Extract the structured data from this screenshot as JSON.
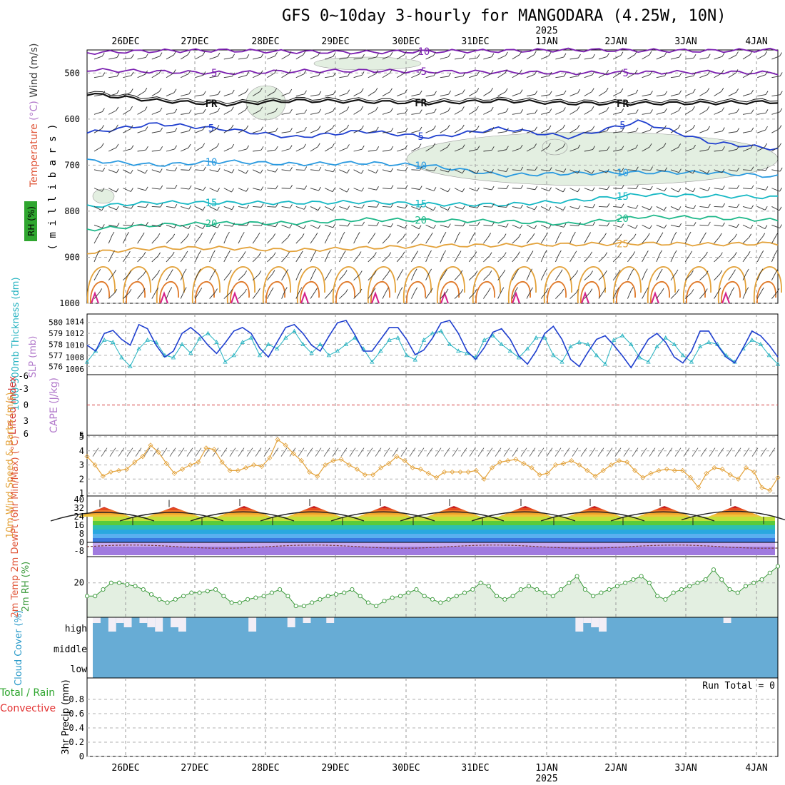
{
  "title": "GFS 0~10day 3-hourly for MANGODARA (4.25W, 10N)",
  "time_axis": {
    "dates": [
      "26DEC",
      "27DEC",
      "28DEC",
      "29DEC",
      "30DEC",
      "31DEC",
      "1JAN",
      "2JAN",
      "3JAN",
      "4JAN"
    ],
    "year_label": "2025",
    "year_under": "1JAN"
  },
  "colors": {
    "temperature": "#e0573a",
    "wind": "#3b3b3b",
    "rh": "#6a9a3a",
    "thickness": "#23b2c0",
    "slp": "#1f3fcf",
    "lifted_index": "#d43b3b",
    "cape": "#b27acb",
    "wind10": "#e3a23a",
    "rh2m": "#3b9a3b",
    "cloud": "#2a9ac9",
    "precip_total": "#2fa62f",
    "precip_conv": "#e33030"
  },
  "chart_data": [
    {
      "type": "line",
      "panel": "upper-air",
      "ylabel_parts": [
        "Temperature",
        "(°C)",
        "Wind",
        "(m/s)"
      ],
      "ylabel2": "( m i l l i b a r s )",
      "rh_label": "RH (%)",
      "y_ticks": [
        500,
        600,
        700,
        800,
        900,
        1000
      ],
      "ylim": [
        1000,
        450
      ],
      "isotherm_labels": [
        "-10",
        "-5",
        "FR",
        "5",
        "10",
        "15",
        "20",
        "25"
      ],
      "series": [
        {
          "name": "-10",
          "color": "#7b1fb0",
          "y": [
            456,
            452,
            451,
            454,
            455,
            453,
            452,
            450,
            451,
            452,
            450
          ]
        },
        {
          "name": "-5",
          "color": "#7b1fb0",
          "y": [
            493,
            497,
            500,
            496,
            495,
            497,
            498,
            500,
            499,
            498,
            500
          ]
        },
        {
          "name": "FR",
          "color": "#111111",
          "y": [
            545,
            560,
            568,
            560,
            562,
            565,
            560,
            566,
            566,
            565,
            563
          ]
        },
        {
          "name": "5",
          "color": "#1f3fcf",
          "y": [
            630,
            610,
            622,
            640,
            626,
            640,
            620,
            640,
            605,
            650,
            665
          ]
        },
        {
          "name": "10",
          "color": "#2a9ae0",
          "y": [
            690,
            700,
            692,
            698,
            695,
            702,
            722,
            718,
            716,
            716,
            725
          ]
        },
        {
          "name": "15",
          "color": "#16b8c4",
          "y": [
            790,
            781,
            782,
            782,
            780,
            785,
            786,
            778,
            764,
            767,
            770
          ]
        },
        {
          "name": "20",
          "color": "#1fb88a",
          "y": [
            840,
            830,
            826,
            826,
            818,
            820,
            822,
            828,
            812,
            814,
            820
          ]
        },
        {
          "name": "25",
          "color": "#e3a23a",
          "y": [
            890,
            880,
            880,
            885,
            880,
            875,
            874,
            872,
            870,
            872,
            870
          ]
        }
      ]
    },
    {
      "type": "line",
      "panel": "thickness-slp",
      "ylabel": "1000-500mb Thickness (dm)",
      "ylabel2": "SLP (mb)",
      "left_ticks": [
        576,
        577,
        578,
        579,
        580
      ],
      "right_ticks": [
        1006,
        1008,
        1010,
        1012,
        1014
      ],
      "series": [
        {
          "name": "Thickness",
          "axis": "left",
          "values": [
            576.4,
            577.4,
            578.4,
            578.2,
            576.8,
            576.0,
            577.6,
            578.4,
            578.2,
            577.0,
            576.8,
            578.0,
            577.2,
            578.5,
            579.0,
            578.2,
            576.4,
            577.0,
            578.2,
            578.6,
            577.0,
            578.0,
            577.6,
            578.6,
            579.2,
            578.0,
            577.2,
            578.0,
            577.0,
            577.4,
            578.0,
            578.6,
            577.6,
            576.4,
            577.4,
            578.4,
            578.6,
            577.0,
            576.6,
            578.4,
            579.0,
            579.2,
            578.0,
            577.4,
            577.2,
            576.8,
            578.4,
            578.8,
            578.0,
            577.4,
            576.8,
            577.6,
            578.6,
            578.6,
            577.0,
            576.4,
            577.8,
            578.2,
            578.0,
            577.0,
            576.2,
            578.4,
            578.8,
            578.0,
            576.8,
            576.4,
            577.8,
            578.6,
            578.0,
            577.0,
            576.4,
            577.8,
            578.2,
            578.0,
            577.0,
            576.4,
            577.6,
            578.4,
            578.0,
            577.0,
            576.2
          ]
        },
        {
          "name": "SLP",
          "axis": "right",
          "values": [
            1010.0,
            1009.0,
            1012.0,
            1012.5,
            1011.0,
            1010.0,
            1013.5,
            1012.8,
            1010.0,
            1008.0,
            1009.0,
            1012.0,
            1013.0,
            1011.8,
            1010.0,
            1008.6,
            1010.4,
            1012.4,
            1013.0,
            1012.0,
            1009.5,
            1008.0,
            1010.5,
            1013.0,
            1013.5,
            1012.0,
            1010.0,
            1009.0,
            1011.5,
            1013.8,
            1014.2,
            1011.8,
            1009.0,
            1009.0,
            1011.0,
            1013.0,
            1013.0,
            1011.0,
            1008.4,
            1009.2,
            1011.2,
            1013.8,
            1014.2,
            1012.0,
            1009.0,
            1007.6,
            1009.6,
            1012.2,
            1012.8,
            1011.0,
            1008.2,
            1006.8,
            1009.0,
            1012.0,
            1013.2,
            1011.0,
            1007.6,
            1006.4,
            1008.8,
            1011.0,
            1011.6,
            1010.0,
            1008.2,
            1006.2,
            1008.6,
            1011.0,
            1012.0,
            1010.5,
            1008.0,
            1007.0,
            1009.0,
            1012.4,
            1012.4,
            1010.0,
            1008.0,
            1007.0,
            1009.6,
            1012.4,
            1011.6,
            1010.0,
            1008.0
          ]
        }
      ]
    },
    {
      "type": "line",
      "panel": "stability",
      "ylabel": "Lifted Index",
      "ylabel2": "CAPE (J/kg)",
      "left_ticks": [
        "-6",
        "-3",
        "0",
        "3",
        "6"
      ],
      "right_ticks": [
        "5"
      ],
      "lifted_index_zero": 0
    },
    {
      "type": "line",
      "panel": "wind10m",
      "ylabel": "10m Wind Speed & Barbs (m/s)",
      "y_ticks": [
        1,
        2,
        3,
        4,
        5
      ],
      "ylim": [
        1,
        5
      ],
      "series": [
        {
          "name": "Speed",
          "values": [
            3.6,
            3.0,
            2.2,
            2.5,
            2.6,
            2.7,
            3.2,
            3.6,
            4.4,
            3.9,
            3.1,
            2.4,
            2.7,
            3.0,
            3.2,
            4.2,
            4.1,
            3.2,
            2.6,
            2.6,
            2.8,
            3.0,
            2.9,
            3.5,
            4.8,
            4.4,
            3.8,
            3.3,
            2.5,
            2.2,
            3.0,
            3.3,
            3.4,
            3.0,
            2.7,
            2.3,
            2.3,
            2.8,
            3.1,
            3.6,
            3.3,
            2.8,
            2.7,
            2.4,
            2.1,
            2.5,
            2.5,
            2.5,
            2.5,
            2.6,
            2.0,
            2.8,
            3.2,
            3.3,
            3.4,
            3.1,
            2.8,
            2.3,
            2.4,
            3.0,
            3.1,
            3.3,
            3.0,
            2.6,
            2.2,
            2.6,
            3.0,
            3.3,
            3.2,
            2.6,
            2.1,
            2.4,
            2.6,
            2.7,
            2.6,
            2.6,
            2.1,
            1.4,
            2.4,
            2.8,
            2.7,
            2.3,
            2.0,
            2.8,
            2.5,
            1.4,
            1.2,
            2.1
          ]
        }
      ]
    },
    {
      "type": "area",
      "panel": "temp2m",
      "ylabel": "2m Temp 2m DewPt (6hr Min/Max) (°C)",
      "y_ticks": [
        -8,
        0,
        8,
        16,
        24,
        32
      ],
      "y_tick_labels": [
        "-8",
        "0",
        "8",
        "16",
        "24",
        "32",
        "40"
      ],
      "temp_days": [
        {
          "max": 33,
          "min": 20
        },
        {
          "max": 33,
          "min": 20
        },
        {
          "max": 34,
          "min": 20
        },
        {
          "max": 34,
          "min": 20
        },
        {
          "max": 34,
          "min": 20
        },
        {
          "max": 34,
          "min": 20
        },
        {
          "max": 34,
          "min": 20
        },
        {
          "max": 34,
          "min": 20
        },
        {
          "max": 34,
          "min": 20
        },
        {
          "max": 34,
          "min": 21
        }
      ],
      "dewpoint_mean": -4
    },
    {
      "type": "area",
      "panel": "rh2m",
      "ylabel": "2m RH (%)",
      "y_ticks": [
        20
      ],
      "values": [
        12,
        12,
        16,
        20,
        20,
        19,
        18,
        16,
        13,
        10,
        8,
        10,
        12,
        14,
        14,
        15,
        16,
        12,
        8,
        8,
        10,
        11,
        12,
        14,
        16,
        12,
        6,
        6,
        8,
        10,
        12,
        13,
        14,
        16,
        12,
        8,
        6,
        9,
        11,
        12,
        14,
        16,
        12,
        10,
        8,
        10,
        12,
        14,
        16,
        20,
        18,
        12,
        10,
        12,
        16,
        18,
        16,
        14,
        12,
        16,
        20,
        24,
        16,
        12,
        14,
        16,
        18,
        20,
        22,
        24,
        20,
        12,
        10,
        14,
        16,
        18,
        20,
        22,
        28,
        22,
        16,
        14,
        18,
        20,
        22,
        26,
        30
      ]
    },
    {
      "type": "bar",
      "panel": "cloud",
      "ylabel": "Cloud Cover (%)",
      "levels": [
        "high",
        "middle",
        "low"
      ],
      "high_gaps": [
        1,
        0,
        1,
        1,
        1,
        0,
        1,
        1,
        1,
        0,
        1,
        1,
        0,
        0,
        0,
        0,
        0,
        0,
        0,
        0,
        1,
        0,
        0,
        0,
        0,
        1,
        0,
        1,
        0,
        0,
        1,
        0,
        0,
        0,
        0,
        0,
        0,
        0,
        0,
        0,
        0,
        0,
        0,
        0,
        0,
        0,
        0,
        0,
        0,
        0,
        0,
        0,
        0,
        0,
        0,
        0,
        0,
        0,
        0,
        0,
        0,
        0,
        1,
        1,
        1,
        1,
        0,
        0,
        0,
        0,
        0,
        0,
        0,
        0,
        0,
        0,
        0,
        0,
        0,
        0,
        0,
        1,
        0,
        0,
        0,
        0,
        0,
        0
      ]
    },
    {
      "type": "bar",
      "panel": "precip",
      "ylabel": "3hr Precip (mm)",
      "ylabel2_total": "Total / Rain",
      "ylabel2_conv": "Convective",
      "y_ticks": [
        "0",
        "0.2",
        "0.4",
        "0.6",
        "0.8"
      ],
      "ylim": [
        0,
        1
      ],
      "run_total": "Run Total = 0",
      "values": []
    }
  ]
}
